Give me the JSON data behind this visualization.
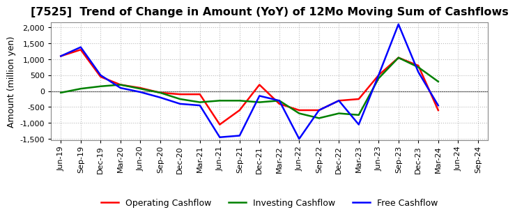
{
  "title": "[7525]  Trend of Change in Amount (YoY) of 12Mo Moving Sum of Cashflows",
  "ylabel": "Amount (million yen)",
  "x_labels": [
    "Jun-19",
    "Sep-19",
    "Dec-19",
    "Mar-20",
    "Jun-20",
    "Sep-20",
    "Dec-20",
    "Mar-21",
    "Jun-21",
    "Sep-21",
    "Dec-21",
    "Mar-22",
    "Jun-22",
    "Sep-22",
    "Dec-22",
    "Mar-23",
    "Jun-23",
    "Sep-23",
    "Dec-23",
    "Mar-24",
    "Jun-24",
    "Sep-24"
  ],
  "operating_cashflow": [
    1100,
    1300,
    450,
    200,
    100,
    -50,
    -100,
    -100,
    -1050,
    -600,
    200,
    -400,
    -600,
    -600,
    -300,
    -250,
    500,
    1050,
    800,
    -600,
    null,
    null
  ],
  "investing_cashflow": [
    -50,
    75,
    150,
    200,
    75,
    -50,
    -250,
    -350,
    -300,
    -300,
    -350,
    -300,
    -700,
    -850,
    -700,
    -750,
    400,
    1050,
    750,
    300,
    null,
    null
  ],
  "free_cashflow": [
    1100,
    1380,
    500,
    100,
    -30,
    -200,
    -400,
    -450,
    -1450,
    -1400,
    -150,
    -300,
    -1500,
    -600,
    -300,
    -1050,
    500,
    2100,
    600,
    -450,
    null,
    null
  ],
  "operating_color": "#FF0000",
  "investing_color": "#008000",
  "free_color": "#0000FF",
  "ylim_min": -1500,
  "ylim_max": 2100,
  "yticks": [
    -1500,
    -1000,
    -500,
    0,
    500,
    1000,
    1500,
    2000
  ],
  "bg_color": "#FFFFFF",
  "plot_bg_color": "#FFFFFF",
  "grid_color": "#BBBBBB",
  "grid_style": ":",
  "line_width": 1.8,
  "title_fontsize": 11.5,
  "axis_label_fontsize": 9,
  "tick_fontsize": 8,
  "legend_fontsize": 9
}
